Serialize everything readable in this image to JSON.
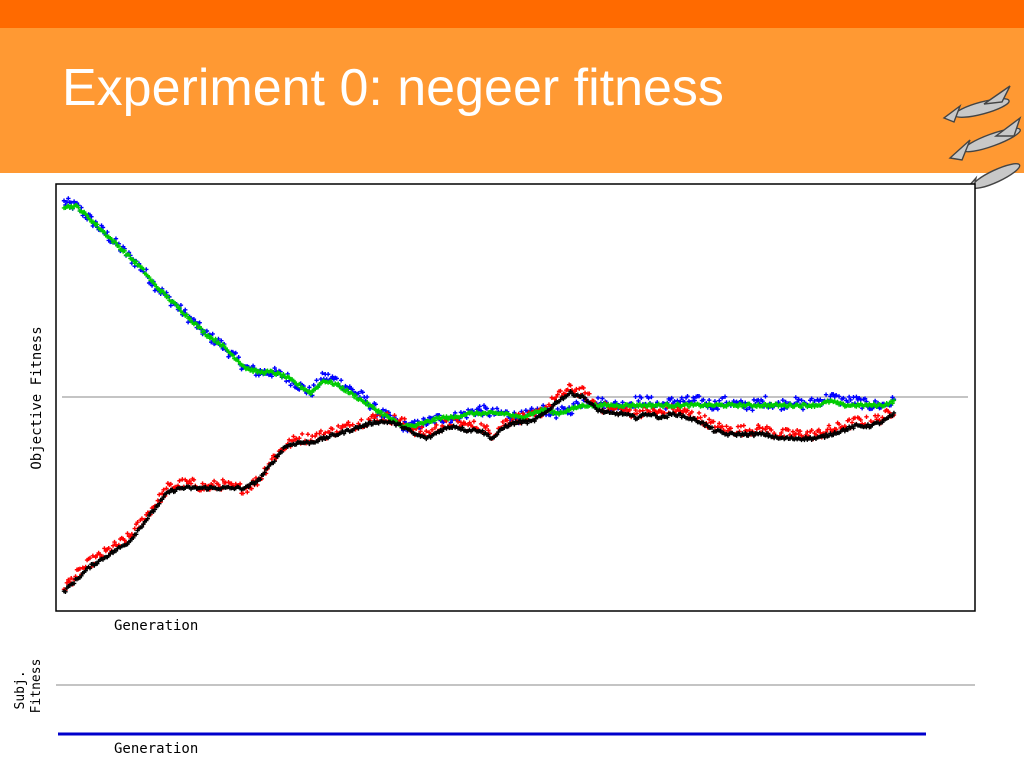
{
  "slide": {
    "title": "Experiment 0: negeer fitness",
    "logo_icon": "flying-fish-icon",
    "colors": {
      "top_bar": "#ff6a00",
      "title_band": "#ff9933",
      "title_text": "#ffffff"
    }
  },
  "chart_data": [
    {
      "type": "scatter",
      "title": "",
      "xlabel": "Generation",
      "ylabel": "Objective Fitness",
      "xlim": [
        0,
        1000
      ],
      "ylim": [
        0,
        1
      ],
      "reference_line_y": 0.5,
      "grid": false,
      "legend": "none",
      "point_marker": "plus",
      "series": [
        {
          "color": "#0000ff",
          "jitter": 0.013,
          "x": [
            0,
            15,
            30,
            45,
            60,
            75,
            90,
            105,
            120,
            135,
            150,
            165,
            180,
            195,
            210,
            225,
            240,
            255,
            270,
            285,
            300,
            315,
            330,
            345,
            360,
            375,
            390,
            405,
            420,
            435,
            450,
            465,
            480,
            495,
            510,
            525,
            540,
            555,
            570,
            585,
            600,
            615,
            630,
            645,
            660,
            675,
            690,
            705,
            720,
            735,
            750,
            765,
            780,
            795,
            810,
            825,
            840,
            855,
            870,
            885,
            900,
            915,
            930,
            945,
            960
          ],
          "values": [
            0.97,
            0.96,
            0.93,
            0.9,
            0.87,
            0.84,
            0.81,
            0.77,
            0.74,
            0.71,
            0.68,
            0.65,
            0.63,
            0.6,
            0.57,
            0.56,
            0.56,
            0.55,
            0.53,
            0.51,
            0.55,
            0.54,
            0.52,
            0.5,
            0.47,
            0.45,
            0.43,
            0.43,
            0.44,
            0.45,
            0.45,
            0.46,
            0.47,
            0.46,
            0.46,
            0.45,
            0.46,
            0.47,
            0.46,
            0.47,
            0.49,
            0.49,
            0.48,
            0.48,
            0.49,
            0.49,
            0.48,
            0.49,
            0.49,
            0.49,
            0.48,
            0.49,
            0.48,
            0.48,
            0.49,
            0.48,
            0.49,
            0.48,
            0.49,
            0.5,
            0.49,
            0.49,
            0.48,
            0.48,
            0.49
          ]
        },
        {
          "color": "#ff0000",
          "jitter": 0.013,
          "x": [
            0,
            15,
            30,
            45,
            60,
            75,
            90,
            105,
            120,
            135,
            150,
            165,
            180,
            195,
            210,
            225,
            240,
            255,
            270,
            285,
            300,
            315,
            330,
            345,
            360,
            375,
            390,
            405,
            420,
            435,
            450,
            465,
            480,
            495,
            510,
            525,
            540,
            555,
            570,
            585,
            600,
            615,
            630,
            645,
            660,
            675,
            690,
            705,
            720,
            735,
            750,
            765,
            780,
            795,
            810,
            825,
            840,
            855,
            870,
            885,
            900,
            915,
            930,
            945,
            960
          ],
          "values": [
            0.04,
            0.07,
            0.1,
            0.12,
            0.14,
            0.16,
            0.2,
            0.24,
            0.28,
            0.29,
            0.29,
            0.28,
            0.29,
            0.28,
            0.28,
            0.3,
            0.35,
            0.38,
            0.4,
            0.4,
            0.41,
            0.42,
            0.43,
            0.44,
            0.45,
            0.45,
            0.44,
            0.42,
            0.41,
            0.43,
            0.44,
            0.43,
            0.43,
            0.41,
            0.44,
            0.45,
            0.45,
            0.47,
            0.5,
            0.52,
            0.51,
            0.48,
            0.47,
            0.47,
            0.46,
            0.47,
            0.46,
            0.47,
            0.46,
            0.45,
            0.43,
            0.42,
            0.42,
            0.42,
            0.42,
            0.41,
            0.41,
            0.41,
            0.41,
            0.42,
            0.43,
            0.44,
            0.44,
            0.45,
            0.47
          ]
        },
        {
          "color": "#00cc00",
          "jitter": 0.004,
          "x": [
            0,
            15,
            30,
            45,
            60,
            75,
            90,
            105,
            120,
            135,
            150,
            165,
            180,
            195,
            210,
            225,
            240,
            255,
            270,
            285,
            300,
            315,
            330,
            345,
            360,
            375,
            390,
            405,
            420,
            435,
            450,
            465,
            480,
            495,
            510,
            525,
            540,
            555,
            570,
            585,
            600,
            615,
            630,
            645,
            660,
            675,
            690,
            705,
            720,
            735,
            750,
            765,
            780,
            795,
            810,
            825,
            840,
            855,
            870,
            885,
            900,
            915,
            930,
            945,
            960
          ],
          "values": [
            0.96,
            0.96,
            0.93,
            0.9,
            0.87,
            0.84,
            0.81,
            0.77,
            0.74,
            0.71,
            0.68,
            0.65,
            0.63,
            0.6,
            0.57,
            0.56,
            0.56,
            0.55,
            0.53,
            0.51,
            0.54,
            0.53,
            0.51,
            0.49,
            0.47,
            0.45,
            0.43,
            0.43,
            0.44,
            0.45,
            0.45,
            0.46,
            0.46,
            0.46,
            0.46,
            0.45,
            0.46,
            0.47,
            0.46,
            0.47,
            0.48,
            0.48,
            0.48,
            0.48,
            0.48,
            0.48,
            0.48,
            0.48,
            0.48,
            0.48,
            0.48,
            0.48,
            0.48,
            0.48,
            0.48,
            0.48,
            0.48,
            0.48,
            0.48,
            0.49,
            0.48,
            0.48,
            0.48,
            0.48,
            0.49
          ]
        },
        {
          "color": "#000000",
          "jitter": 0.004,
          "x": [
            0,
            15,
            30,
            45,
            60,
            75,
            90,
            105,
            120,
            135,
            150,
            165,
            180,
            195,
            210,
            225,
            240,
            255,
            270,
            285,
            300,
            315,
            330,
            345,
            360,
            375,
            390,
            405,
            420,
            435,
            450,
            465,
            480,
            495,
            510,
            525,
            540,
            555,
            570,
            585,
            600,
            615,
            630,
            645,
            660,
            675,
            690,
            705,
            720,
            735,
            750,
            765,
            780,
            795,
            810,
            825,
            840,
            855,
            870,
            885,
            900,
            915,
            930,
            945,
            960
          ],
          "values": [
            0.03,
            0.06,
            0.09,
            0.11,
            0.13,
            0.15,
            0.19,
            0.23,
            0.27,
            0.28,
            0.28,
            0.28,
            0.28,
            0.28,
            0.28,
            0.3,
            0.34,
            0.38,
            0.39,
            0.39,
            0.4,
            0.41,
            0.42,
            0.43,
            0.44,
            0.44,
            0.43,
            0.41,
            0.4,
            0.42,
            0.43,
            0.42,
            0.42,
            0.4,
            0.43,
            0.44,
            0.44,
            0.46,
            0.49,
            0.51,
            0.5,
            0.47,
            0.46,
            0.46,
            0.45,
            0.46,
            0.45,
            0.46,
            0.45,
            0.44,
            0.42,
            0.41,
            0.41,
            0.41,
            0.41,
            0.4,
            0.4,
            0.4,
            0.4,
            0.41,
            0.42,
            0.43,
            0.43,
            0.44,
            0.46
          ]
        }
      ]
    },
    {
      "type": "line",
      "title": "",
      "xlabel": "Generation",
      "ylabel": "Subj. Fitness",
      "xlim": [
        0,
        1000
      ],
      "ylim": [
        0,
        1
      ],
      "reference_line_y": 0.5,
      "grid": false,
      "legend": "none",
      "series": [
        {
          "color": "#0000cc",
          "x": [
            0,
            960
          ],
          "values": [
            0,
            0
          ]
        }
      ]
    }
  ]
}
